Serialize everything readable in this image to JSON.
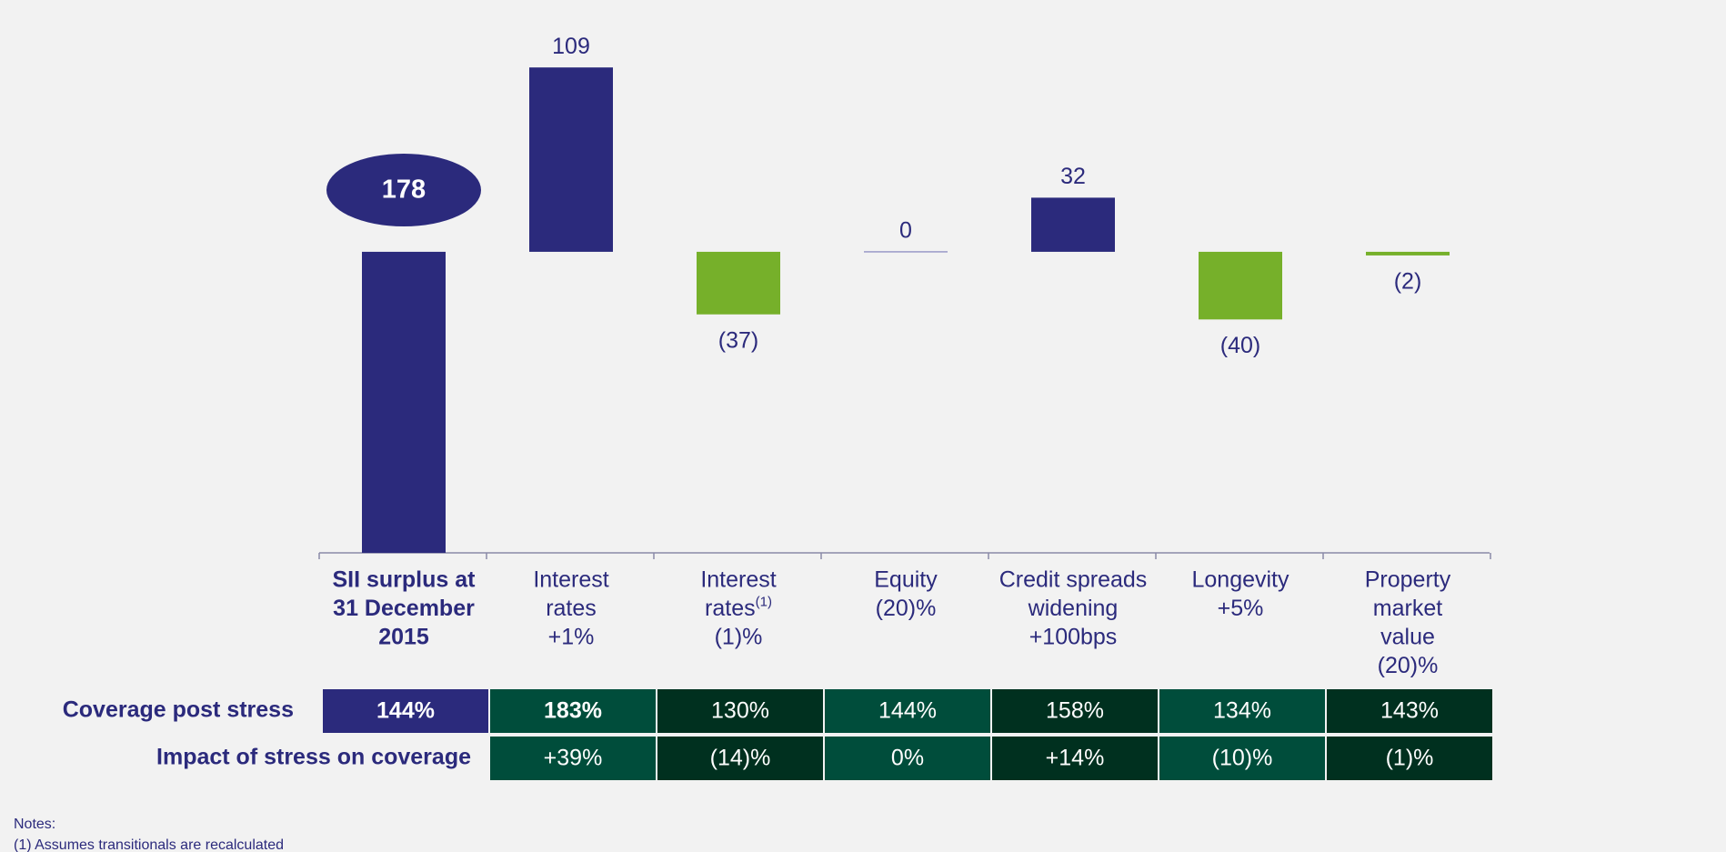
{
  "chart_data": {
    "type": "waterfall",
    "categories": [
      [
        "SII surplus at",
        "31 December",
        "2015"
      ],
      [
        "Interest",
        "rates",
        "+1%"
      ],
      [
        "Interest",
        "rates",
        "(1)%"
      ],
      [
        "Equity",
        "(20)%"
      ],
      [
        "Credit spreads",
        "widening",
        "+100bps"
      ],
      [
        "Longevity",
        "+5%"
      ],
      [
        "Property",
        "market",
        "value",
        "(20)%"
      ]
    ],
    "category_notes": {
      "2": "(1)"
    },
    "values": [
      178,
      109,
      -37,
      0,
      32,
      -40,
      -2
    ],
    "value_labels": [
      "178",
      "109",
      "(37)",
      "0",
      "32",
      "(40)",
      "(2)"
    ],
    "colors": {
      "total": "#2b2a7c",
      "increase": "#2b2a7c",
      "decrease": "#76b02a",
      "zero": "#9a9ac8"
    },
    "table": {
      "rows": [
        {
          "name": "Coverage post stress",
          "values": [
            144,
            183,
            130,
            144,
            158,
            134,
            143
          ],
          "value_labels": [
            "144%",
            "183%",
            "130%",
            "144%",
            "158%",
            "134%",
            "143%"
          ]
        },
        {
          "name": "Impact of stress on coverage",
          "values": [
            39,
            -14,
            0,
            14,
            -10,
            -1
          ],
          "value_labels": [
            "+39%",
            "(14)%",
            "0%",
            "+14%",
            "(10)%",
            "(1)%"
          ]
        }
      ]
    },
    "notes": [
      "Notes:",
      "(1) Assumes transitionals are recalculated"
    ]
  }
}
